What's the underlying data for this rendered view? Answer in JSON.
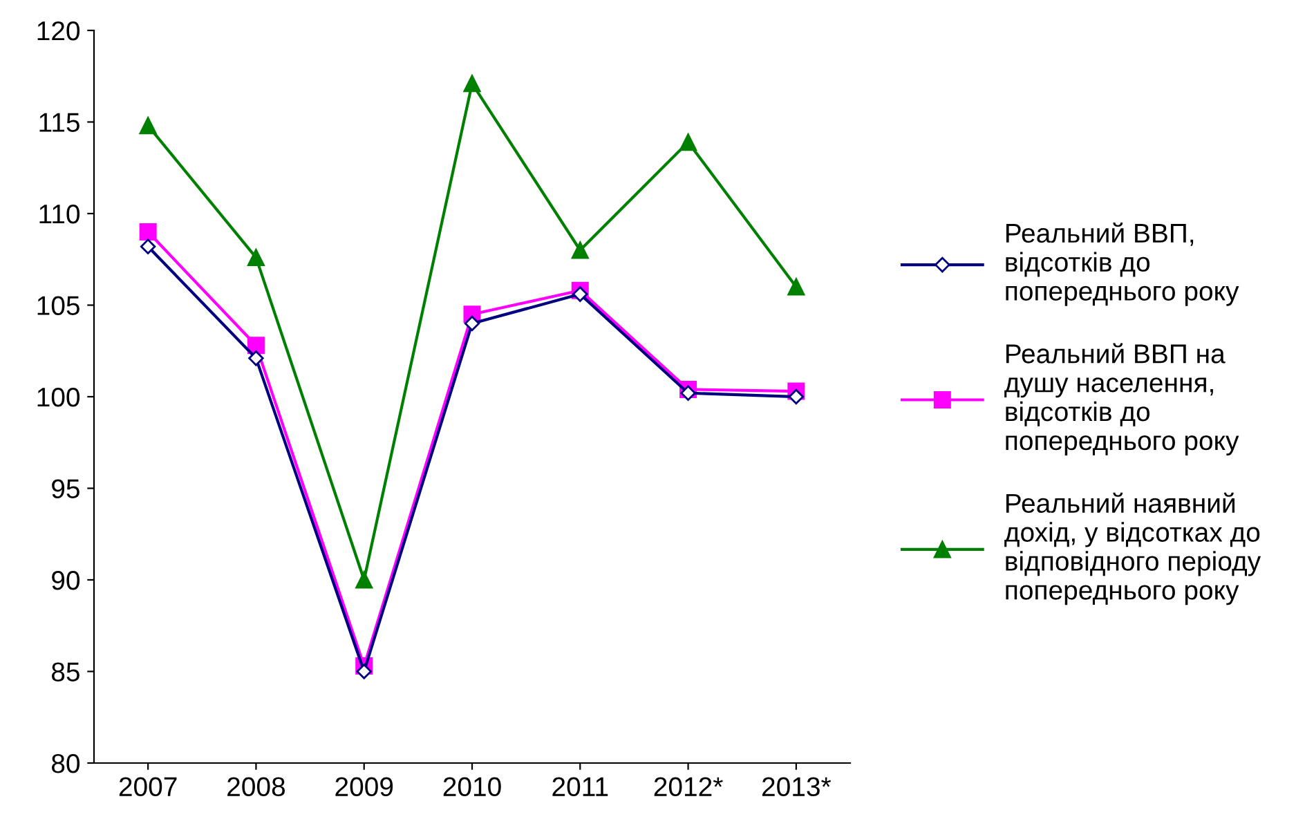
{
  "chart_data": {
    "type": "line",
    "categories": [
      "2007",
      "2008",
      "2009",
      "2010",
      "2011",
      "2012*",
      "2013*"
    ],
    "series": [
      {
        "name": "Реальний ВВП,\nвідсотків до\nпопереднього року",
        "color": "#000080",
        "marker": "diamond",
        "values": [
          108.2,
          102.1,
          85.0,
          104.0,
          105.6,
          100.2,
          100.0
        ]
      },
      {
        "name": "Реальний ВВП на\nдушу населення,\nвідсотків до\nпопереднього року",
        "color": "#ff00ff",
        "marker": "square",
        "values": [
          109.0,
          102.8,
          85.3,
          104.5,
          105.8,
          100.4,
          100.3
        ]
      },
      {
        "name": "Реальний наявний\nдохід, у відсотках до\nвідповідного періоду\nпопереднього року",
        "color": "#008000",
        "marker": "triangle",
        "values": [
          114.8,
          107.6,
          90.0,
          117.1,
          108.0,
          113.9,
          106.0
        ]
      }
    ],
    "ylim": [
      80,
      120
    ],
    "yticks": [
      80,
      85,
      90,
      95,
      100,
      105,
      110,
      115,
      120
    ],
    "grid": false,
    "legend": "right",
    "line_style": "solid"
  }
}
